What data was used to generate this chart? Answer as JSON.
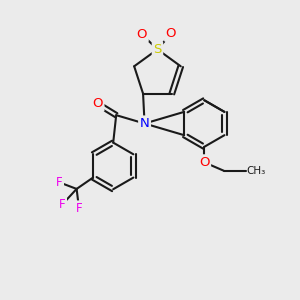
{
  "bg_color": "#ebebeb",
  "bond_color": "#1a1a1a",
  "S_color": "#cccc00",
  "O_color": "#ff0000",
  "N_color": "#0000ff",
  "F_color": "#ee00ee",
  "lw": 1.5,
  "xlim": [
    0,
    10
  ],
  "ylim": [
    0,
    10
  ]
}
